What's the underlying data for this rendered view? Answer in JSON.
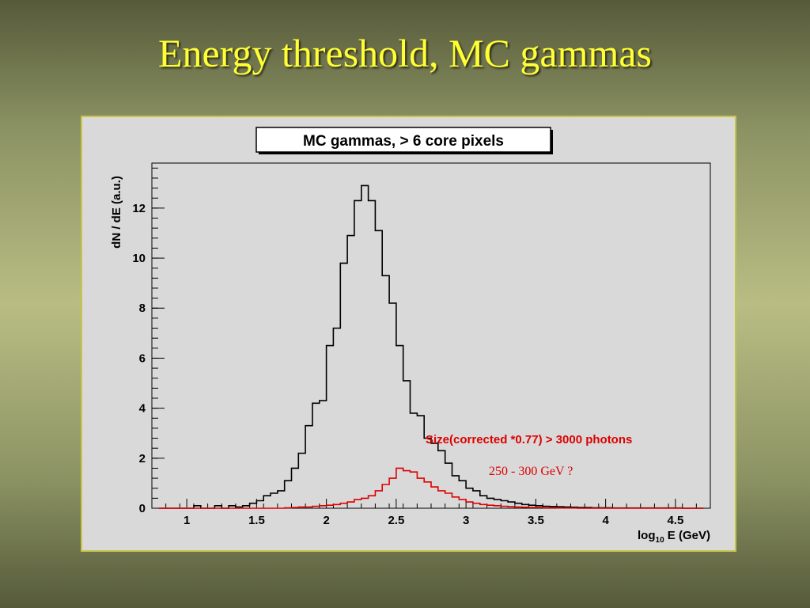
{
  "slide": {
    "title": "Energy threshold, MC gammas"
  },
  "chart_data": {
    "type": "histogram",
    "title": "MC gammas,  > 6 core pixels",
    "ylabel": "dN / dE (a.u.)",
    "xlabel_parts": {
      "main": "log",
      "sub": "10",
      "rest": " E (GeV)"
    },
    "xlim": [
      0.75,
      4.75
    ],
    "ylim": [
      0,
      13.8
    ],
    "x_ticks": [
      1,
      1.5,
      2,
      2.5,
      3,
      3.5,
      4,
      4.5
    ],
    "x_tick_labels": [
      "1",
      "1.5",
      "2",
      "2.5",
      "3",
      "3.5",
      "4",
      "4.5"
    ],
    "y_ticks": [
      0,
      2,
      4,
      6,
      8,
      10,
      12
    ],
    "y_tick_labels": [
      "0",
      "2",
      "4",
      "6",
      "8",
      "10",
      "12"
    ],
    "bin_width": 0.05,
    "series": [
      {
        "color": "#000000",
        "bin_edges_start": 0.8,
        "values": [
          0,
          0,
          0,
          0,
          0,
          0.1,
          0,
          0,
          0.1,
          0,
          0.1,
          0.05,
          0.1,
          0.2,
          0.3,
          0.5,
          0.6,
          0.7,
          1.1,
          1.6,
          2.2,
          3.3,
          4.2,
          4.3,
          6.5,
          7.2,
          9.8,
          10.9,
          12.3,
          12.9,
          12.3,
          11.1,
          9.3,
          8.2,
          6.5,
          5.1,
          3.8,
          3.7,
          2.8,
          2.6,
          2.3,
          1.8,
          1.3,
          1.1,
          0.8,
          0.7,
          0.5,
          0.4,
          0.35,
          0.3,
          0.25,
          0.2,
          0.15,
          0.12,
          0.1,
          0.08,
          0.07,
          0.06,
          0.05,
          0.04,
          0.03,
          0.03,
          0.02,
          0.02,
          0.02,
          0.01,
          0.01,
          0.01,
          0.01,
          0.01,
          0.01,
          0.01,
          0.01,
          0.01,
          0.01,
          0,
          0,
          0
        ]
      },
      {
        "color": "#dd0000",
        "bin_edges_start": 0.8,
        "values": [
          0,
          0,
          0,
          0,
          0,
          0,
          0,
          0,
          0,
          0,
          0,
          0,
          0,
          0,
          0,
          0,
          0,
          0,
          0.02,
          0.03,
          0.05,
          0.05,
          0.08,
          0.1,
          0.12,
          0.15,
          0.2,
          0.25,
          0.35,
          0.4,
          0.5,
          0.7,
          0.95,
          1.2,
          1.6,
          1.5,
          1.45,
          1.2,
          1.05,
          0.85,
          0.7,
          0.6,
          0.45,
          0.35,
          0.25,
          0.2,
          0.15,
          0.12,
          0.1,
          0.08,
          0.06,
          0.05,
          0.04,
          0.03,
          0.03,
          0.02,
          0.02,
          0.01,
          0.01,
          0.01,
          0,
          0,
          0,
          0,
          0,
          0,
          0,
          0,
          0,
          0,
          0,
          0,
          0,
          0,
          0,
          0,
          0,
          0
        ]
      }
    ],
    "annotations": {
      "cut_label": "Size(corrected *0.77) > 3000 photons",
      "energy_label": "250 - 300 GeV ?"
    }
  }
}
